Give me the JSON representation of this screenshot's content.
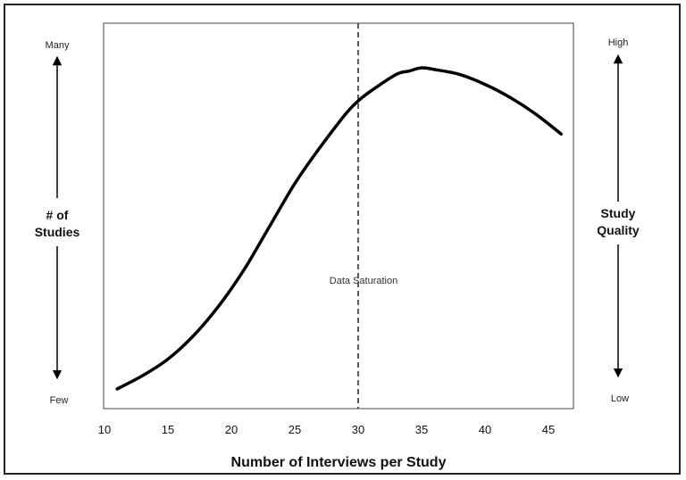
{
  "chart_data": {
    "type": "line",
    "title": "",
    "xlabel": "Number of Interviews per Study",
    "ylabel_left": "# of Studies",
    "ylabel_right": "Study Quality",
    "left_axis": {
      "top": "Many",
      "bottom": "Few"
    },
    "right_axis": {
      "top": "High",
      "bottom": "Low"
    },
    "xlim": [
      10,
      47
    ],
    "ylim": [
      0,
      1
    ],
    "x_ticks": [
      10,
      15,
      20,
      25,
      30,
      35,
      40,
      45
    ],
    "grid": false,
    "legend": "none",
    "annotation": {
      "text": "Data Saturation",
      "x": 30
    },
    "series": [
      {
        "color": "#000000",
        "x": [
          11,
          13,
          15,
          17,
          19,
          21,
          23,
          25,
          27,
          29,
          30,
          31,
          33,
          34,
          35,
          36,
          38,
          40,
          42,
          44,
          46
        ],
        "y": [
          0.03,
          0.07,
          0.12,
          0.19,
          0.28,
          0.39,
          0.52,
          0.65,
          0.76,
          0.86,
          0.9,
          0.93,
          0.98,
          0.99,
          1.0,
          0.995,
          0.98,
          0.95,
          0.91,
          0.86,
          0.8
        ]
      }
    ]
  }
}
